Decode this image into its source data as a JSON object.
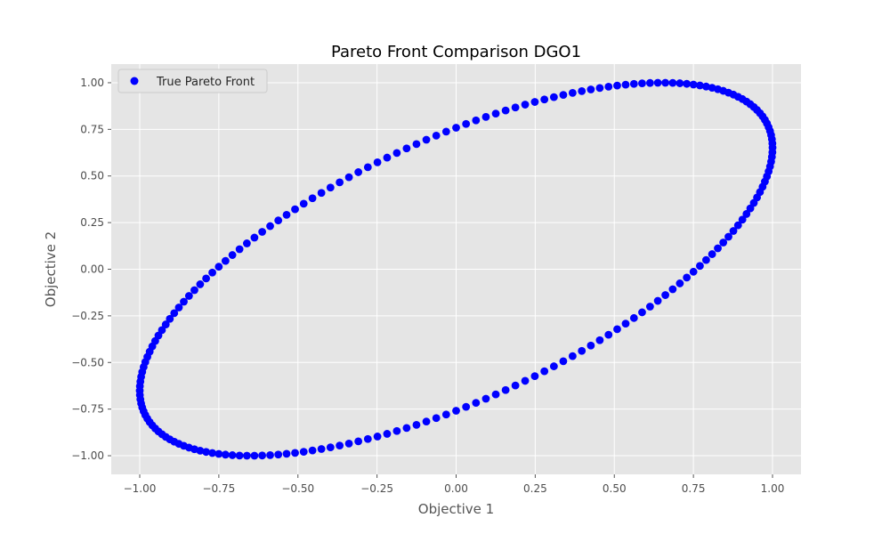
{
  "chart_data": {
    "type": "scatter",
    "title": "Pareto Front Comparison DGO1",
    "xlabel": "Objective 1",
    "ylabel": "Objective 2",
    "xlim": [
      -1.09,
      1.09
    ],
    "ylim": [
      -1.1,
      1.1
    ],
    "xticks": [
      -1.0,
      -0.75,
      -0.5,
      -0.25,
      0.0,
      0.25,
      0.5,
      0.75,
      1.0
    ],
    "xtick_labels": [
      "−1.00",
      "−0.75",
      "−0.50",
      "−0.25",
      "0.00",
      "0.25",
      "0.50",
      "0.75",
      "1.00"
    ],
    "yticks": [
      -1.0,
      -0.75,
      -0.5,
      -0.25,
      0.0,
      0.25,
      0.5,
      0.75,
      1.0
    ],
    "ytick_labels": [
      "−1.00",
      "−0.75",
      "−0.50",
      "−0.25",
      "0.00",
      "0.25",
      "0.50",
      "0.75",
      "1.00"
    ],
    "grid": true,
    "legend_position": "top-left",
    "series": [
      {
        "name": "True Pareto Front",
        "color": "#0000ff",
        "curve": "x = sin(t), y = sin(t + 0.8616), t sampled uniformly over one full period",
        "points": 200
      }
    ]
  }
}
